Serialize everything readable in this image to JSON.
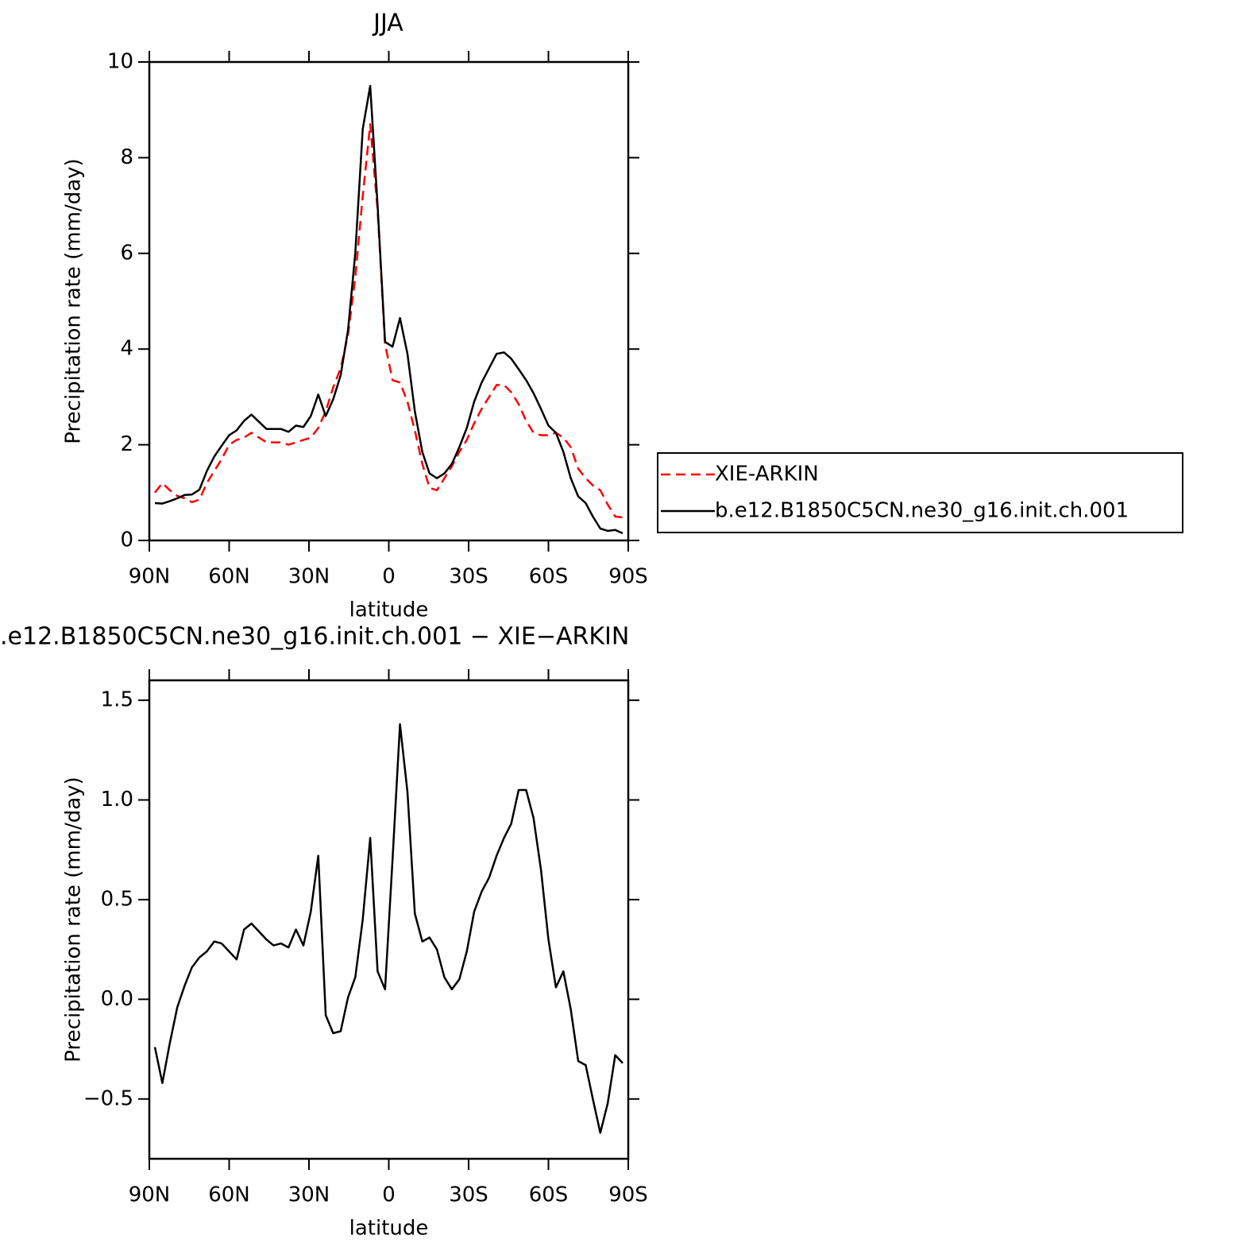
{
  "chart_data": [
    {
      "type": "line",
      "title": "JJA",
      "xlabel": "latitude",
      "ylabel": "Precipitation rate (mm/day)",
      "x": [
        87.9,
        85.1,
        82.3,
        79.5,
        76.7,
        74.0,
        71.2,
        68.4,
        65.6,
        62.8,
        60.0,
        57.2,
        54.4,
        51.6,
        48.8,
        46.0,
        43.3,
        40.5,
        37.7,
        34.9,
        32.1,
        29.3,
        26.5,
        23.7,
        20.9,
        18.1,
        15.3,
        12.6,
        9.8,
        7.0,
        4.2,
        1.4,
        -1.4,
        -4.2,
        -7.0,
        -9.8,
        -12.6,
        -15.3,
        -18.1,
        -20.9,
        -23.7,
        -26.5,
        -29.3,
        -32.1,
        -34.9,
        -37.7,
        -40.5,
        -43.3,
        -46.0,
        -48.8,
        -51.6,
        -54.4,
        -57.2,
        -60.0,
        -62.8,
        -65.6,
        -68.4,
        -71.2,
        -74.0,
        -76.7,
        -79.5,
        -82.3,
        -85.1,
        -87.9
      ],
      "series": [
        {
          "name": "XIE-ARKIN",
          "color": "#ff0000",
          "style": "dashed",
          "values": [
            1.0,
            1.2,
            1.05,
            0.93,
            0.88,
            0.8,
            0.85,
            1.2,
            1.45,
            1.7,
            2.0,
            2.1,
            2.15,
            2.25,
            2.15,
            2.05,
            2.05,
            2.05,
            2.0,
            2.05,
            2.1,
            2.15,
            2.35,
            2.7,
            3.2,
            3.6,
            4.3,
            5.5,
            7.2,
            8.7,
            6.9,
            4.1,
            3.35,
            3.3,
            2.9,
            2.3,
            1.6,
            1.1,
            1.05,
            1.3,
            1.55,
            1.85,
            2.1,
            2.45,
            2.75,
            3.0,
            3.25,
            3.25,
            3.1,
            2.85,
            2.5,
            2.25,
            2.2,
            2.2,
            2.25,
            2.15,
            1.95,
            1.5,
            1.3,
            1.15,
            1.05,
            0.75,
            0.5,
            0.48
          ]
        },
        {
          "name": "b.e12.B1850C5CN.ne30_g16.init.ch.001",
          "color": "#000000",
          "style": "solid",
          "values": [
            0.78,
            0.77,
            0.82,
            0.88,
            0.95,
            0.96,
            1.06,
            1.45,
            1.75,
            1.98,
            2.2,
            2.3,
            2.5,
            2.63,
            2.48,
            2.33,
            2.33,
            2.33,
            2.27,
            2.4,
            2.37,
            2.6,
            3.05,
            2.6,
            2.95,
            3.45,
            4.4,
            6.0,
            8.6,
            9.5,
            7.0,
            4.15,
            4.05,
            4.65,
            3.9,
            2.7,
            1.85,
            1.4,
            1.3,
            1.4,
            1.6,
            1.95,
            2.35,
            2.9,
            3.3,
            3.6,
            3.9,
            3.93,
            3.8,
            3.58,
            3.35,
            3.08,
            2.75,
            2.4,
            2.25,
            1.85,
            1.3,
            0.92,
            0.78,
            0.5,
            0.25,
            0.2,
            0.22,
            0.15
          ]
        }
      ],
      "xlim": [
        90,
        -90
      ],
      "xticks": [
        {
          "value": 90,
          "label": "90N"
        },
        {
          "value": 60,
          "label": "60N"
        },
        {
          "value": 30,
          "label": "30N"
        },
        0,
        {
          "value": -30,
          "label": "30S"
        },
        {
          "value": -60,
          "label": "60S"
        },
        {
          "value": -90,
          "label": "90S"
        }
      ],
      "ylim": [
        0,
        10
      ],
      "yticks": [
        0,
        2,
        4,
        6,
        8,
        10
      ],
      "legend": "right"
    },
    {
      "type": "line",
      "title": ".e12.B1850C5CN.ne30_g16.init.ch.001 − XIE−ARKIN",
      "xlabel": "latitude",
      "ylabel": "Precipitation rate (mm/day)",
      "x": [
        87.9,
        85.1,
        82.3,
        79.5,
        76.7,
        74.0,
        71.2,
        68.4,
        65.6,
        62.8,
        60.0,
        57.2,
        54.4,
        51.6,
        48.8,
        46.0,
        43.3,
        40.5,
        37.7,
        34.9,
        32.1,
        29.3,
        26.5,
        23.7,
        20.9,
        18.1,
        15.3,
        12.6,
        9.8,
        7.0,
        4.2,
        1.4,
        -1.4,
        -4.2,
        -7.0,
        -9.8,
        -12.6,
        -15.3,
        -18.1,
        -20.9,
        -23.7,
        -26.5,
        -29.3,
        -32.1,
        -34.9,
        -37.7,
        -40.5,
        -43.3,
        -46.0,
        -48.8,
        -51.6,
        -54.4,
        -57.2,
        -60.0,
        -62.8,
        -65.6,
        -68.4,
        -71.2,
        -74.0,
        -76.7,
        -79.5,
        -82.3,
        -85.1,
        -87.9
      ],
      "series": [
        {
          "color": "#000000",
          "style": "solid",
          "values": [
            -0.24,
            -0.42,
            -0.22,
            -0.04,
            0.07,
            0.16,
            0.21,
            0.24,
            0.29,
            0.28,
            0.24,
            0.2,
            0.35,
            0.38,
            0.34,
            0.3,
            0.27,
            0.28,
            0.26,
            0.35,
            0.27,
            0.44,
            0.72,
            -0.08,
            -0.17,
            -0.16,
            0.01,
            0.11,
            0.4,
            0.81,
            0.14,
            0.05,
            0.7,
            1.38,
            1.04,
            0.43,
            0.29,
            0.31,
            0.25,
            0.11,
            0.05,
            0.1,
            0.24,
            0.44,
            0.54,
            0.61,
            0.72,
            0.81,
            0.88,
            1.05,
            1.05,
            0.91,
            0.65,
            0.3,
            0.06,
            0.14,
            -0.05,
            -0.31,
            -0.33,
            -0.5,
            -0.67,
            -0.52,
            -0.28,
            -0.32
          ]
        }
      ],
      "xlim": [
        90,
        -90
      ],
      "xticks": [
        {
          "value": 90,
          "label": "90N"
        },
        {
          "value": 60,
          "label": "60N"
        },
        {
          "value": 30,
          "label": "30N"
        },
        0,
        {
          "value": -30,
          "label": "30S"
        },
        {
          "value": -60,
          "label": "60S"
        },
        {
          "value": -90,
          "label": "90S"
        }
      ],
      "ylim": [
        -0.8,
        1.6
      ],
      "yticks": [
        {
          "value": -0.5,
          "label": "−0.5"
        },
        {
          "value": 0,
          "label": "0.0"
        },
        0.5,
        {
          "value": 1,
          "label": "1.0"
        },
        1.5
      ]
    }
  ]
}
